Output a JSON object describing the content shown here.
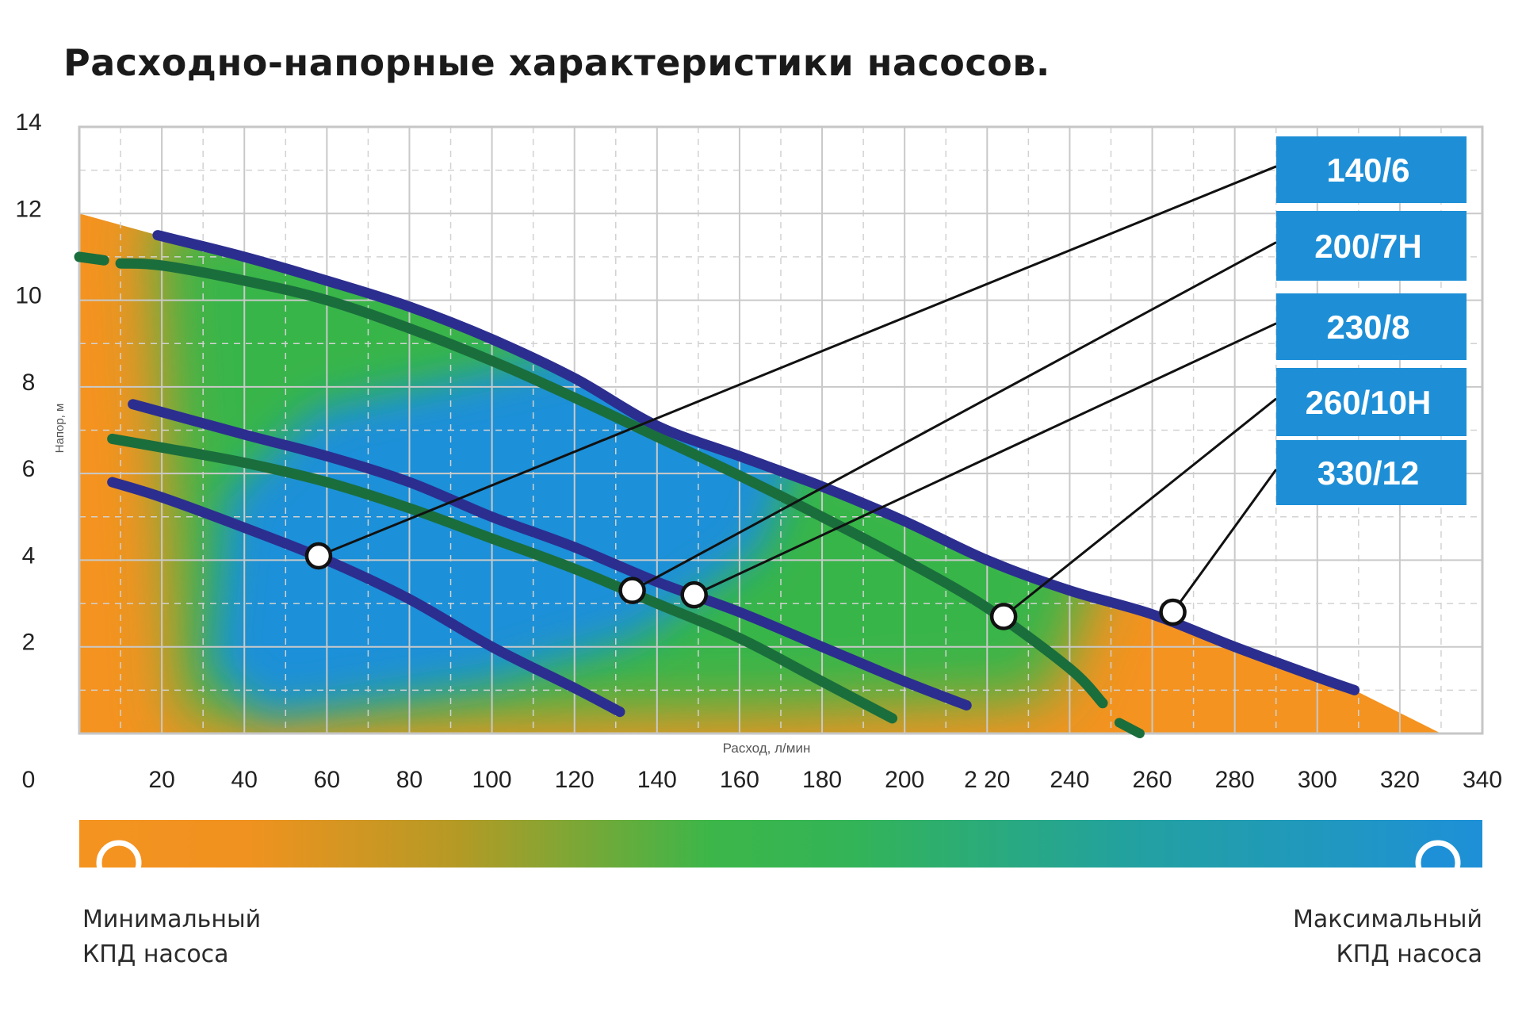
{
  "chart_data": {
    "type": "line",
    "title": "Расходно-напорные характеристики насосов.",
    "xlabel": "Расход, л/мин",
    "ylabel": "Напор, м",
    "xlim": [
      0,
      340
    ],
    "ylim": [
      0,
      14
    ],
    "x_ticks": [
      20,
      40,
      60,
      80,
      100,
      120,
      140,
      160,
      180,
      200,
      220,
      240,
      260,
      280,
      300,
      320,
      340
    ],
    "x_tick_labels": [
      "20",
      "40",
      "60",
      "80",
      "100",
      "120",
      "140",
      "160",
      "180",
      "200",
      "2 20",
      "240",
      "260",
      "280",
      "300",
      "320",
      "340"
    ],
    "y_ticks": [
      2,
      4,
      6,
      8,
      10,
      12,
      14
    ],
    "origin_label": "0",
    "grid": true,
    "series": [
      {
        "name": "140/6",
        "color": "#2b2e8f",
        "points": [
          [
            8,
            5.8
          ],
          [
            20,
            5.45
          ],
          [
            40,
            4.75
          ],
          [
            60,
            4.0
          ],
          [
            80,
            3.1
          ],
          [
            100,
            2.0
          ],
          [
            120,
            1.05
          ],
          [
            131,
            0.5
          ]
        ],
        "marker": [
          58,
          4.1
        ]
      },
      {
        "name": "200/7H",
        "color": "#1a6e3c",
        "points": [
          [
            8,
            6.8
          ],
          [
            20,
            6.6
          ],
          [
            40,
            6.25
          ],
          [
            60,
            5.8
          ],
          [
            80,
            5.2
          ],
          [
            100,
            4.5
          ],
          [
            120,
            3.8
          ],
          [
            140,
            3.0
          ],
          [
            160,
            2.2
          ],
          [
            180,
            1.2
          ],
          [
            197,
            0.35
          ]
        ],
        "marker": [
          134,
          3.3
        ]
      },
      {
        "name": "230/8",
        "color": "#2b2e8f",
        "points": [
          [
            13,
            7.6
          ],
          [
            40,
            6.9
          ],
          [
            60,
            6.4
          ],
          [
            80,
            5.8
          ],
          [
            100,
            5.0
          ],
          [
            120,
            4.3
          ],
          [
            140,
            3.5
          ],
          [
            160,
            2.8
          ],
          [
            180,
            2.0
          ],
          [
            200,
            1.2
          ],
          [
            215,
            0.65
          ]
        ],
        "marker": [
          149,
          3.2
        ]
      },
      {
        "name": "260/10H",
        "color": "#1a6e3c",
        "points": [
          [
            0,
            11.0
          ],
          [
            3,
            10.95
          ],
          [
            7,
            10.9
          ],
          [
            10,
            10.85
          ],
          [
            20,
            10.8
          ],
          [
            40,
            10.45
          ],
          [
            60,
            10.0
          ],
          [
            80,
            9.35
          ],
          [
            100,
            8.6
          ],
          [
            120,
            7.75
          ],
          [
            140,
            6.85
          ],
          [
            160,
            5.95
          ],
          [
            180,
            5.0
          ],
          [
            200,
            4.0
          ],
          [
            220,
            2.9
          ],
          [
            240,
            1.5
          ],
          [
            248,
            0.7
          ]
        ],
        "marker": [
          224,
          2.7
        ]
      },
      {
        "name": "330/12",
        "color": "#2b2e8f",
        "points": [
          [
            19,
            11.5
          ],
          [
            40,
            11.0
          ],
          [
            60,
            10.45
          ],
          [
            80,
            9.85
          ],
          [
            100,
            9.1
          ],
          [
            120,
            8.2
          ],
          [
            140,
            7.1
          ],
          [
            160,
            6.4
          ],
          [
            180,
            5.7
          ],
          [
            200,
            4.9
          ],
          [
            220,
            4.0
          ],
          [
            240,
            3.3
          ],
          [
            260,
            2.75
          ],
          [
            280,
            2.0
          ],
          [
            300,
            1.3
          ],
          [
            309,
            1.0
          ]
        ],
        "marker": [
          265,
          2.8
        ]
      }
    ],
    "dashed_extension": {
      "series": "260/10H",
      "points": [
        [
          252,
          0.25
        ],
        [
          257,
          0.0
        ]
      ]
    },
    "efficiency_region_colors": {
      "min": "#f49320",
      "mid": "#38b54a",
      "max": "#1e90d8"
    },
    "legend_placement": "right",
    "legend_box_color": "#1e8fd6"
  },
  "legend": {
    "min_label": "Минимальный\nКПД насоса",
    "max_label": "Максимальный\nКПД насоса",
    "min_color": "#f49320",
    "max_color": "#1e90d8"
  }
}
